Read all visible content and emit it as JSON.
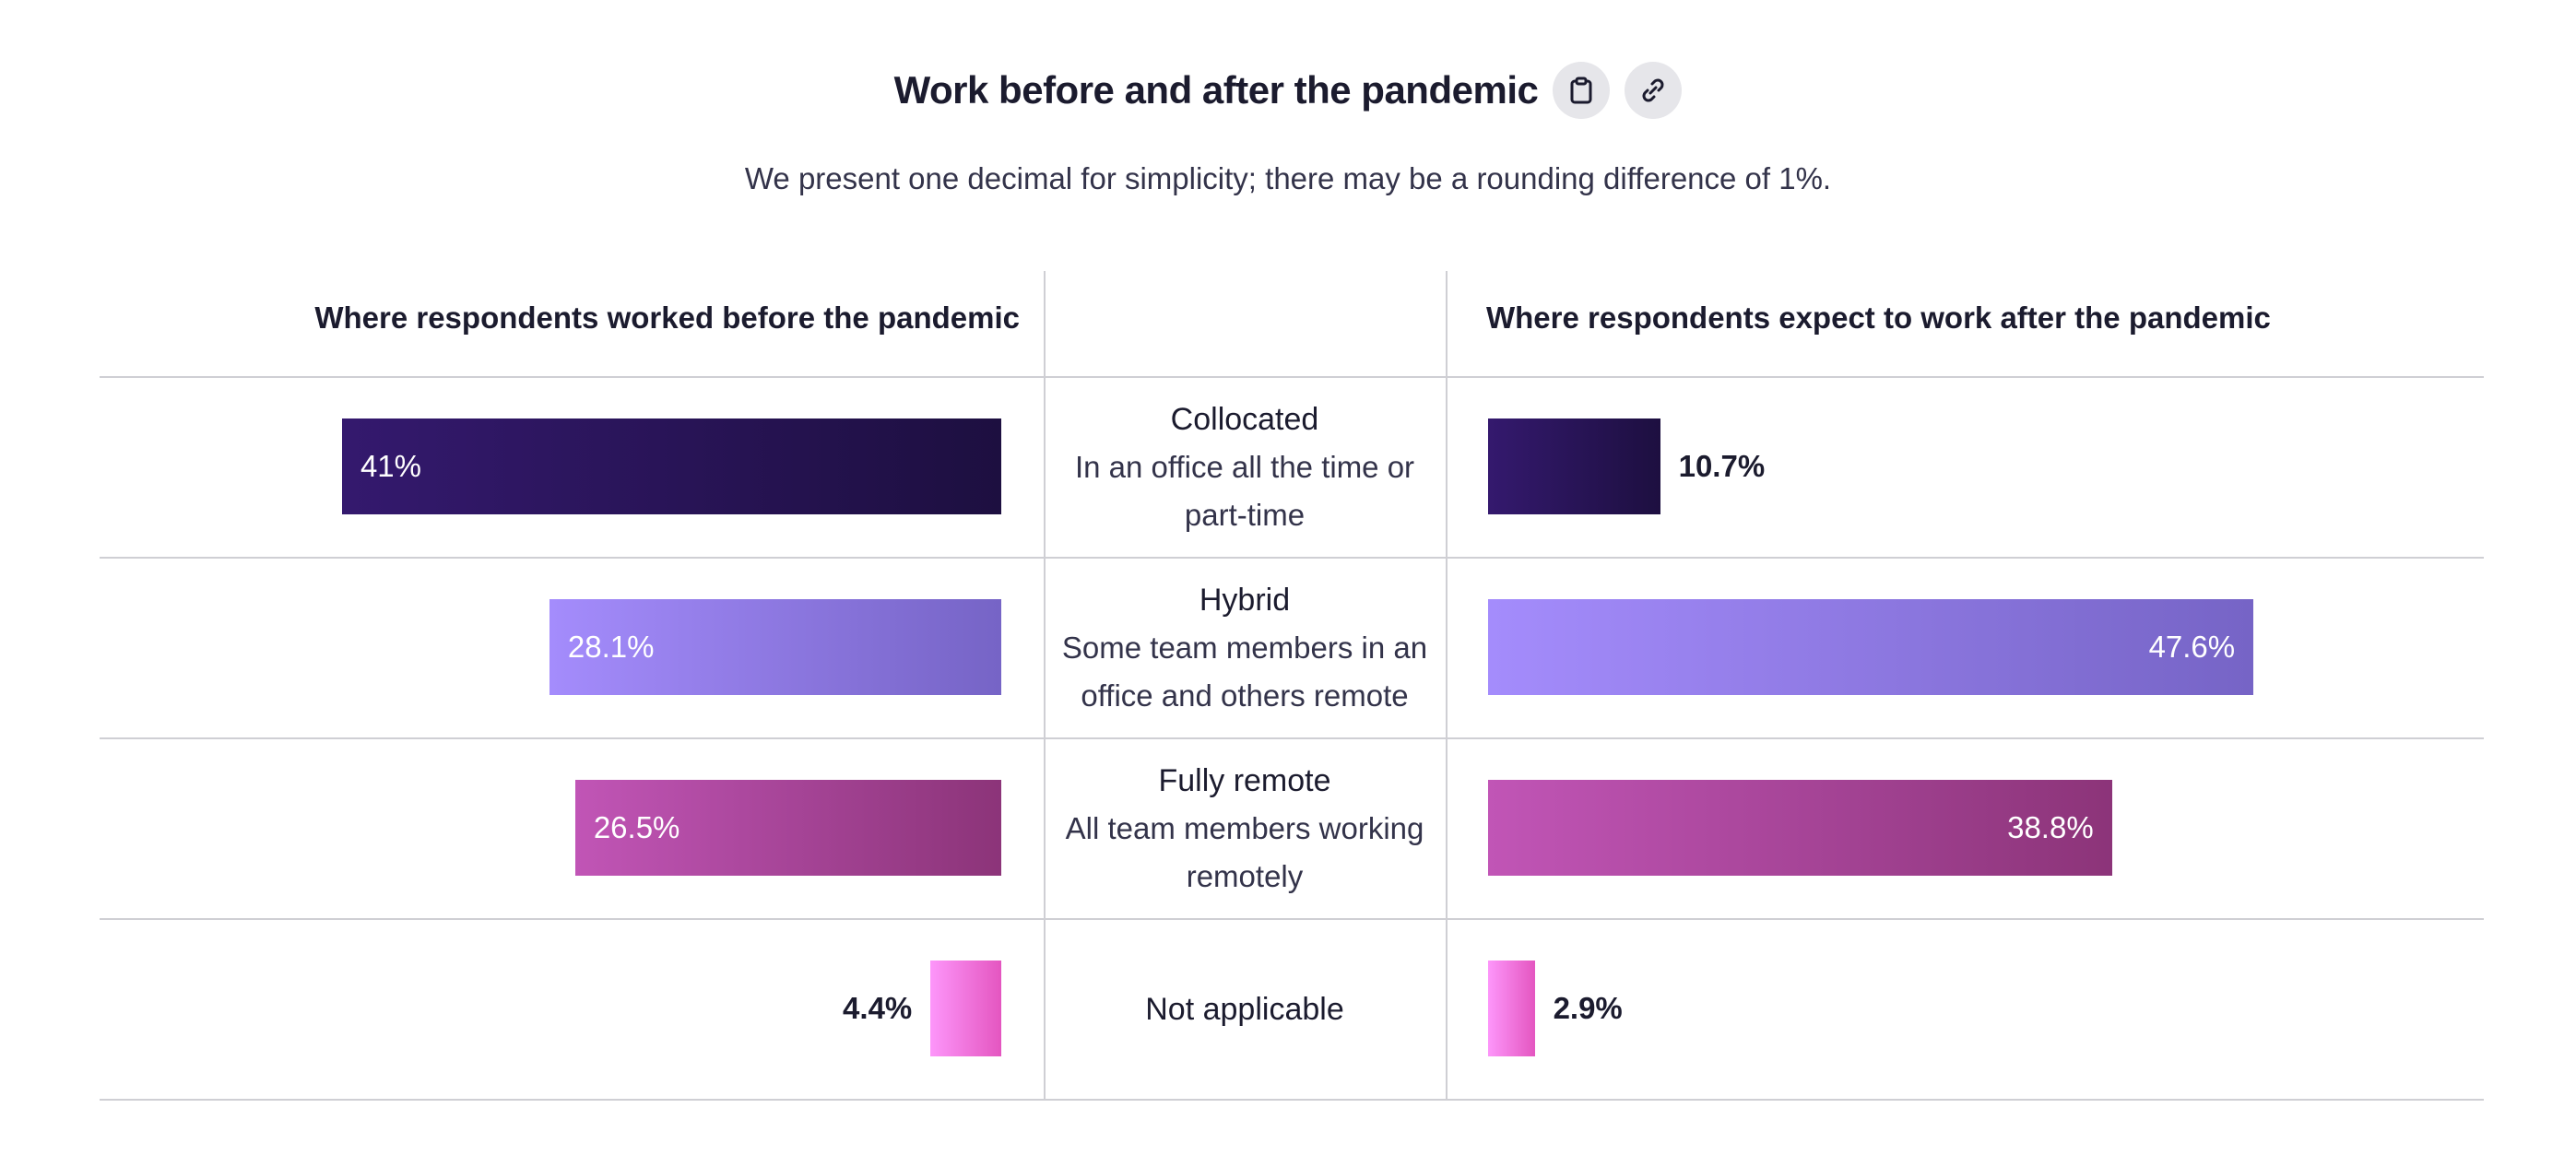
{
  "title": "Work before and after the pandemic",
  "icons": [
    "clipboard-icon",
    "link-icon"
  ],
  "subtitle": "We present one decimal for simplicity; there may be a rounding difference of 1%.",
  "chart_data": {
    "type": "bar",
    "left_header": "Where respondents worked before the pandemic",
    "right_header": "Where respondents expect to work after the pandemic",
    "rows": [
      {
        "name": "Collocated",
        "desc": "In an office all the time or part-time",
        "before": 41,
        "before_label": "41%",
        "after": 10.7,
        "after_label": "10.7%",
        "colors": [
          "#34196e",
          "#1d0f40"
        ]
      },
      {
        "name": "Hybrid",
        "desc": "Some team members in an office and others remote",
        "before": 28.1,
        "before_label": "28.1%",
        "after": 47.6,
        "after_label": "47.6%",
        "colors": [
          "#a48cfc",
          "#7664c6"
        ]
      },
      {
        "name": "Fully remote",
        "desc": "All team members working remotely",
        "before": 26.5,
        "before_label": "26.5%",
        "after": 38.8,
        "after_label": "38.8%",
        "colors": [
          "#c155b6",
          "#8c3479"
        ]
      },
      {
        "name": "Not applicable",
        "desc": "",
        "before": 4.4,
        "before_label": "4.4%",
        "after": 2.9,
        "after_label": "2.9%",
        "colors": [
          "#fd96fa",
          "#e456c0"
        ]
      }
    ]
  }
}
